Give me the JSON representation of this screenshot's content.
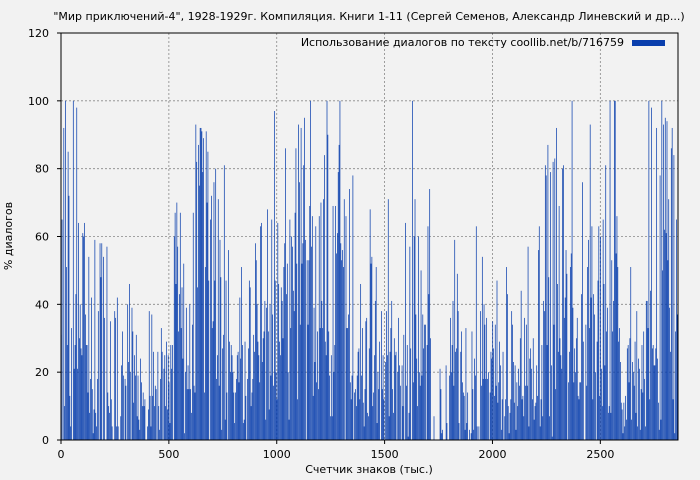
{
  "chart_data": {
    "type": "bar",
    "title": "\"Мир приключений-4\", 1928-1929г. Компиляция. Книги 1-11 (Сергей Семенов, Александр Линевский и др...)",
    "xlabel": "Счетчик знаков (тыс.)",
    "ylabel": "% диалогов",
    "xlim": [
      0,
      2860
    ],
    "ylim": [
      0,
      120
    ],
    "x_ticks": [
      0,
      500,
      1000,
      1500,
      2000,
      2500
    ],
    "y_ticks": [
      0,
      20,
      40,
      60,
      80,
      100,
      120
    ],
    "grid": true,
    "legend_position": "top-right",
    "bar_color": "#0a3fad",
    "background": "#f2f2f2",
    "series": [
      {
        "name": "Использование диалогов по тексту coollib.net/b/716759",
        "x_start": 1,
        "x_step": 4,
        "values": [
          31,
          65,
          0,
          92,
          10,
          100,
          51,
          28,
          85,
          72,
          13,
          4,
          33,
          0,
          100,
          21,
          28,
          43,
          98,
          21,
          64,
          30,
          40,
          27,
          25,
          61,
          60,
          64,
          37,
          28,
          28,
          14,
          54,
          8,
          18,
          42,
          15,
          2,
          9,
          59,
          8,
          4,
          18,
          38,
          0,
          58,
          48,
          58,
          0,
          54,
          36,
          0,
          0,
          57,
          14,
          10,
          8,
          35,
          12,
          4,
          0,
          0,
          38,
          36,
          4,
          42,
          4,
          0,
          0,
          7,
          22,
          32,
          19,
          0,
          18,
          16,
          0,
          40,
          23,
          46,
          20,
          0,
          39,
          32,
          11,
          25,
          19,
          31,
          7,
          19,
          6,
          3,
          24,
          17,
          10,
          14,
          10,
          12,
          0,
          0,
          4,
          9,
          38,
          13,
          4,
          37,
          13,
          26,
          10,
          16,
          15,
          0,
          26,
          10,
          3,
          18,
          33,
          26,
          0,
          21,
          25,
          10,
          29,
          9,
          25,
          17,
          5,
          28,
          21,
          28,
          0,
          60,
          67,
          46,
          70,
          57,
          32,
          43,
          67,
          33,
          45,
          24,
          52,
          2,
          20,
          39,
          15,
          22,
          15,
          40,
          15,
          8,
          34,
          67,
          16,
          14,
          93,
          82,
          45,
          87,
          75,
          92,
          92,
          91,
          79,
          89,
          14,
          51,
          91,
          70,
          85,
          47,
          0,
          65,
          72,
          33,
          35,
          76,
          47,
          80,
          18,
          25,
          71,
          16,
          59,
          48,
          3,
          27,
          31,
          81,
          6,
          47,
          14,
          0,
          56,
          29,
          20,
          28,
          25,
          20,
          14,
          5,
          14,
          18,
          25,
          26,
          17,
          42,
          24,
          51,
          28,
          5,
          6,
          29,
          13,
          0,
          18,
          27,
          47,
          45,
          10,
          14,
          18,
          31,
          26,
          58,
          53,
          40,
          29,
          25,
          17,
          63,
          64,
          23,
          30,
          32,
          41,
          6,
          39,
          68,
          32,
          9,
          40,
          19,
          65,
          37,
          16,
          97,
          47,
          20,
          12,
          64,
          46,
          29,
          25,
          45,
          41,
          30,
          51,
          58,
          86,
          43,
          52,
          20,
          6,
          65,
          33,
          60,
          57,
          44,
          38,
          67,
          86,
          52,
          12,
          93,
          76,
          34,
          92,
          52,
          58,
          81,
          95,
          59,
          0,
          53,
          34,
          53,
          69,
          100,
          57,
          66,
          13,
          39,
          23,
          63,
          17,
          32,
          15,
          66,
          33,
          70,
          41,
          33,
          71,
          84,
          29,
          25,
          100,
          90,
          32,
          19,
          7,
          25,
          7,
          69,
          20,
          28,
          69,
          55,
          61,
          79,
          87,
          100,
          58,
          53,
          56,
          51,
          71,
          0,
          66,
          33,
          33,
          37,
          74,
          17,
          12,
          19,
          78,
          0,
          14,
          15,
          10,
          19,
          26,
          27,
          12,
          46,
          19,
          33,
          11,
          4,
          15,
          35,
          36,
          8,
          7,
          27,
          68,
          52,
          54,
          10,
          14,
          25,
          41,
          51,
          5,
          20,
          15,
          29,
          0,
          38,
          15,
          25,
          12,
          0,
          23,
          38,
          25,
          71,
          7,
          26,
          33,
          41,
          15,
          8,
          30,
          25,
          26,
          0,
          20,
          36,
          22,
          16,
          0,
          22,
          10,
          31,
          0,
          64,
          16,
          28,
          1,
          8,
          57,
          27,
          0,
          100,
          17,
          60,
          71,
          37,
          24,
          10,
          60,
          20,
          16,
          50,
          19,
          37,
          27,
          34,
          34,
          0,
          28,
          63,
          43,
          74,
          30,
          0,
          0,
          0,
          7,
          0,
          0,
          0,
          0,
          0,
          0,
          21,
          15,
          2,
          3,
          0,
          0,
          0,
          22,
          5,
          0,
          0,
          19,
          36,
          20,
          28,
          41,
          16,
          59,
          26,
          27,
          49,
          38,
          5,
          0,
          26,
          32,
          17,
          14,
          13,
          3,
          33,
          5,
          14,
          0,
          3,
          0,
          2,
          32,
          15,
          3,
          24,
          19,
          63,
          4,
          0,
          4,
          0,
          38,
          16,
          54,
          18,
          40,
          34,
          18,
          36,
          18,
          20,
          0,
          14,
          26,
          24,
          35,
          27,
          13,
          34,
          16,
          47,
          11,
          17,
          29,
          22,
          3,
          12,
          26,
          0,
          7,
          12,
          51,
          43,
          10,
          2,
          8,
          12,
          38,
          34,
          23,
          11,
          22,
          3,
          17,
          10,
          21,
          16,
          30,
          44,
          12,
          13,
          7,
          36,
          16,
          34,
          16,
          57,
          4,
          24,
          27,
          21,
          12,
          30,
          6,
          10,
          11,
          22,
          13,
          56,
          63,
          4,
          12,
          28,
          7,
          41,
          38,
          81,
          78,
          28,
          87,
          48,
          7,
          79,
          22,
          1,
          82,
          34,
          83,
          15,
          92,
          46,
          26,
          69,
          30,
          25,
          21,
          80,
          81,
          36,
          42,
          56,
          49,
          0,
          17,
          26,
          51,
          55,
          100,
          39,
          17,
          27,
          20,
          30,
          36,
          13,
          12,
          17,
          17,
          43,
          76,
          29,
          0,
          0,
          34,
          16,
          51,
          59,
          33,
          93,
          42,
          63,
          12,
          43,
          37,
          20,
          0,
          29,
          47,
          63,
          13,
          60,
          21,
          10,
          65,
          46,
          22,
          81,
          32,
          39,
          8,
          10,
          100,
          8,
          53,
          32,
          41,
          100,
          100,
          55,
          66,
          51,
          29,
          33,
          23,
          11,
          9,
          2,
          11,
          4,
          13,
          6,
          27,
          28,
          17,
          30,
          51,
          6,
          23,
          20,
          16,
          29,
          8,
          38,
          4,
          24,
          21,
          3,
          15,
          28,
          14,
          32,
          18,
          4,
          41,
          41,
          33,
          100,
          12,
          44,
          98,
          27,
          28,
          22,
          22,
          27,
          92,
          24,
          11,
          3,
          78,
          6,
          100,
          50,
          93,
          62,
          95,
          61,
          94,
          53,
          71,
          39,
          26,
          86,
          92,
          12,
          84,
          2,
          32,
          65,
          37,
          90,
          4,
          41,
          84,
          35,
          39,
          2,
          12,
          64,
          35,
          84,
          8,
          80,
          28,
          86,
          21,
          62,
          45,
          70,
          20,
          40,
          35,
          18,
          53,
          37,
          51,
          0,
          11,
          62,
          25,
          12,
          65,
          24,
          55,
          21,
          45,
          81,
          49,
          26,
          42,
          45,
          33,
          45,
          0,
          36,
          79,
          51,
          5,
          36,
          61,
          31,
          13,
          0,
          25,
          82,
          10,
          18,
          37,
          33,
          0,
          57,
          13,
          80,
          31,
          35,
          21,
          54,
          64,
          48,
          80,
          2,
          6,
          0,
          5,
          0,
          0,
          0,
          0,
          0,
          0,
          14,
          20,
          0,
          8,
          59,
          16,
          7,
          0,
          3,
          12,
          28,
          39,
          54,
          10,
          36,
          31,
          38,
          24,
          20,
          2,
          0,
          5,
          5,
          24,
          53,
          62,
          48,
          21,
          73,
          54,
          8,
          10,
          94,
          23,
          10,
          9,
          14,
          33,
          31,
          13,
          27,
          19,
          83,
          57,
          84,
          18,
          4,
          18,
          48,
          59,
          52,
          32,
          40,
          49,
          17,
          20,
          38,
          72,
          67,
          33,
          15,
          33,
          14,
          16,
          86,
          78,
          74,
          71,
          68,
          27,
          21,
          22,
          16,
          0,
          2,
          22,
          22,
          100,
          65,
          14,
          80,
          17,
          63,
          100,
          42,
          43,
          65,
          80,
          66,
          2,
          65,
          9,
          16,
          84,
          98,
          30,
          10,
          40,
          69,
          23,
          7,
          3,
          92,
          35,
          76,
          83,
          100,
          64,
          29,
          52,
          56,
          75,
          58,
          19,
          17,
          9,
          34,
          17,
          58,
          32,
          58,
          21,
          72,
          19,
          5,
          0,
          1,
          6,
          25,
          26,
          7,
          27,
          33,
          46,
          65,
          9,
          17,
          34,
          33,
          28,
          2,
          2,
          11,
          3,
          66,
          23,
          33,
          100,
          76,
          82,
          30,
          74,
          36,
          50,
          97,
          54,
          62,
          17,
          11,
          59,
          24,
          48,
          38,
          19,
          9,
          0,
          0,
          2,
          30,
          41,
          56,
          8,
          78,
          89,
          59,
          71,
          18,
          14,
          57,
          73,
          18,
          30,
          14,
          35,
          91,
          36,
          11,
          35,
          14,
          41,
          46,
          51,
          37,
          45,
          16,
          54,
          36,
          3,
          0,
          100,
          35,
          81,
          17,
          36,
          47,
          87,
          42,
          5,
          11,
          47,
          55,
          19,
          64,
          13,
          80,
          21,
          42,
          14,
          100,
          72,
          49,
          34,
          18,
          2,
          23,
          11,
          53,
          24,
          19,
          53,
          48,
          32,
          57,
          70,
          35,
          100,
          62,
          27,
          78,
          28,
          88,
          19,
          10,
          78,
          64,
          80,
          91,
          3,
          51,
          62,
          0,
          8,
          67,
          84,
          28,
          100,
          40,
          86,
          52,
          24,
          74,
          16,
          71,
          36,
          53,
          8,
          65,
          37,
          29,
          38,
          59,
          45,
          12,
          0,
          9,
          58,
          11,
          34,
          6,
          13,
          6,
          7,
          2,
          0,
          7,
          6,
          0,
          0,
          2,
          19,
          0,
          18,
          43,
          26,
          0,
          47,
          5,
          29,
          19,
          32,
          53,
          39,
          33,
          11,
          1,
          0,
          0,
          0,
          0,
          0,
          0,
          24,
          17,
          47,
          14,
          13,
          8,
          34,
          33,
          12,
          17,
          37,
          27,
          2,
          0,
          6,
          0,
          20,
          62,
          3,
          41,
          65,
          71,
          14,
          38,
          4,
          47,
          66,
          17,
          30,
          63,
          52,
          69,
          95,
          45,
          100,
          48,
          19,
          52,
          75,
          36,
          21,
          44,
          25,
          15,
          2,
          3,
          12,
          30,
          71,
          18,
          0,
          3,
          25,
          41,
          30,
          12,
          53,
          7,
          27,
          83,
          56,
          76,
          23,
          11,
          22,
          93,
          4,
          18,
          11,
          63,
          84,
          35,
          21,
          43,
          75,
          88,
          81,
          27,
          42,
          74,
          17,
          53,
          9,
          88,
          13,
          29,
          66,
          12,
          43,
          28,
          55,
          3,
          34,
          13,
          50,
          42,
          77,
          13,
          5,
          38,
          12,
          84,
          59,
          3,
          65,
          0,
          4,
          0,
          0,
          10,
          0,
          14,
          5,
          19,
          24,
          44,
          2,
          23,
          24,
          7,
          23,
          76,
          18,
          32,
          58,
          46,
          32,
          67,
          10,
          33,
          45,
          75,
          59,
          88,
          42,
          71,
          50,
          94,
          20,
          68,
          87,
          30,
          73,
          76,
          48,
          15,
          29,
          94,
          92,
          31,
          86,
          21,
          70,
          3,
          14,
          62,
          72,
          55,
          45,
          64,
          85,
          48,
          82,
          7,
          76,
          88,
          100,
          43,
          18,
          85,
          58,
          40,
          76,
          16,
          67,
          84,
          73,
          92,
          20,
          24,
          79,
          12,
          34,
          31,
          86,
          56,
          26,
          100,
          88,
          23,
          55,
          47,
          25,
          18,
          4,
          10,
          18
        ]
      }
    ]
  }
}
